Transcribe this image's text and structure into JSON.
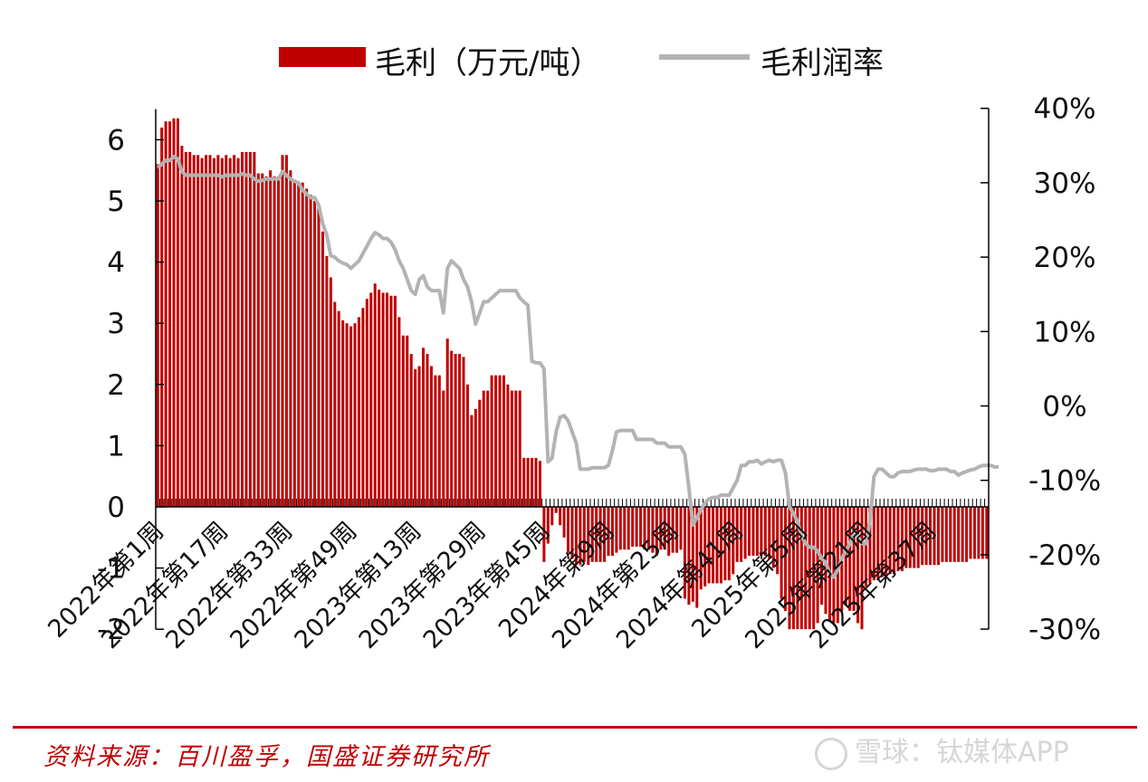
{
  "legend": {
    "bar_label": "毛利（万元/吨）",
    "line_label": "毛利润率"
  },
  "source": "资料来源：百川盈孚，国盛证券研究所",
  "watermark": "雪球：钛媒体APP",
  "colors": {
    "bar": "#c00000",
    "line": "#b3b3b3",
    "accent": "#c00000"
  },
  "chart_data": {
    "type": "bar+line",
    "title": "",
    "x_tick_labels": [
      "2022年第1周",
      "2022年第17周",
      "2022年第33周",
      "2022年第49周",
      "2023年第13周",
      "2023年第29周",
      "2023年第45周",
      "2024年第9周",
      "2024年第25周",
      "2024年第41周",
      "2025年第5周",
      "2025年第21周",
      "2025年第37周"
    ],
    "left_axis": {
      "ticks": [
        "-2",
        "-1",
        "0",
        "1",
        "2",
        "3",
        "4",
        "5",
        "6"
      ],
      "ylim": [
        -2,
        6.5
      ]
    },
    "right_axis": {
      "ticks": [
        "-30%",
        "-20%",
        "-10%",
        "0%",
        "10%",
        "20%",
        "30%",
        "40%"
      ],
      "ylim": [
        -30,
        40
      ]
    },
    "series": [
      {
        "name": "毛利（万元/吨）",
        "axis": "left",
        "type": "bar",
        "values": [
          5.6,
          6.2,
          6.3,
          6.3,
          6.35,
          6.35,
          5.9,
          5.8,
          5.8,
          5.75,
          5.75,
          5.7,
          5.75,
          5.75,
          5.7,
          5.75,
          5.7,
          5.75,
          5.7,
          5.75,
          5.7,
          5.8,
          5.8,
          5.8,
          5.8,
          5.45,
          5.45,
          5.4,
          5.5,
          5.4,
          5.4,
          5.75,
          5.75,
          5.5,
          5.35,
          5.3,
          5.3,
          5.2,
          5.1,
          5.0,
          4.9,
          4.5,
          4.1,
          3.75,
          3.35,
          3.2,
          3.05,
          3.0,
          2.95,
          3.0,
          3.1,
          3.25,
          3.4,
          3.5,
          3.65,
          3.55,
          3.5,
          3.5,
          3.45,
          3.45,
          3.1,
          2.8,
          2.8,
          2.5,
          2.25,
          2.3,
          2.6,
          2.5,
          2.3,
          2.15,
          2.15,
          1.9,
          2.75,
          2.55,
          2.5,
          2.5,
          2.45,
          2.0,
          1.5,
          1.6,
          1.75,
          1.9,
          1.9,
          2.15,
          2.15,
          2.15,
          2.15,
          2.0,
          1.9,
          1.9,
          1.9,
          0.8,
          0.8,
          0.8,
          0.8,
          0.75,
          -0.9,
          -0.6,
          -0.3,
          -0.1,
          -0.3,
          -0.5,
          -0.75,
          -0.85,
          -0.95,
          -0.95,
          -0.9,
          -0.95,
          -0.9,
          -0.9,
          -0.9,
          -0.9,
          -0.8,
          -0.8,
          -0.75,
          -0.7,
          -0.7,
          -0.7,
          -0.65,
          -0.65,
          -0.65,
          -0.7,
          -0.7,
          -0.75,
          -0.8,
          -0.7,
          -0.7,
          -0.8,
          -0.75,
          -0.75,
          -0.7,
          -1.5,
          -1.6,
          -1.55,
          -1.65,
          -1.35,
          -1.3,
          -1.25,
          -1.25,
          -1.25,
          -1.25,
          -1.2,
          -1.2,
          -1.1,
          -0.9,
          -0.9,
          -0.85,
          -0.8,
          -0.8,
          -0.8,
          -0.8,
          -0.8,
          -0.85,
          -1.0,
          -1.1,
          -1.5,
          -1.7,
          -2.0,
          -2.0,
          -2.0,
          -2.0,
          -2.0,
          -2.0,
          -2.0,
          -1.9,
          -1.6,
          -1.75,
          -1.85,
          -1.9,
          -1.9,
          -1.7,
          -1.6,
          -1.7,
          -1.7,
          -1.9,
          -2.0,
          -1.3,
          -1.25,
          -1.2,
          -1.2,
          -1.15,
          -1.15,
          -1.1,
          -1.1,
          -1.05,
          -1.05,
          -1.0,
          -1.0,
          -1.0,
          -1.0,
          -0.95,
          -0.95,
          -0.95,
          -0.95,
          -0.95,
          -0.9,
          -0.9,
          -0.9,
          -0.9,
          -0.9,
          -0.9,
          -0.9,
          -0.85,
          -0.85,
          -0.85,
          -0.85,
          -0.85
        ]
      },
      {
        "name": "毛利润率",
        "axis": "right",
        "type": "line",
        "values": [
          32,
          32.5,
          33,
          33,
          33.5,
          33.2,
          31.5,
          31,
          31,
          31,
          31,
          31,
          31,
          31,
          31,
          31,
          30.8,
          31,
          31,
          31,
          31,
          31.2,
          31,
          31,
          30.5,
          30.2,
          30.3,
          30.5,
          30.5,
          30.5,
          30.5,
          31.5,
          31,
          30.5,
          30.2,
          30,
          29,
          28.5,
          28,
          28,
          27,
          24.5,
          23,
          20.2,
          20,
          19.5,
          19.2,
          19,
          18.5,
          19,
          19.5,
          20.5,
          21.5,
          22.5,
          23.3,
          23,
          22.5,
          22.5,
          22,
          21,
          19.5,
          18.5,
          17,
          15.5,
          15,
          17,
          17.5,
          16,
          15.5,
          15.5,
          15.5,
          12.5,
          18.5,
          19.5,
          19,
          18.5,
          17,
          16,
          14,
          11,
          12.5,
          14,
          14,
          14.5,
          15,
          15.5,
          15.5,
          15.5,
          15.5,
          15.5,
          14.5,
          14,
          13.5,
          6,
          5.8,
          5.8,
          5,
          -7.5,
          -7,
          -3.5,
          -1.5,
          -1.3,
          -2,
          -3.5,
          -5,
          -8.5,
          -8.5,
          -8.5,
          -8.3,
          -8.3,
          -8.3,
          -8.3,
          -8,
          -6,
          -3.5,
          -3.3,
          -3.3,
          -3.3,
          -3.3,
          -4.5,
          -4.5,
          -4.5,
          -4.5,
          -4.5,
          -5,
          -5,
          -5,
          -5.5,
          -5.5,
          -5.5,
          -5.5,
          -6.5,
          -11,
          -16,
          -15,
          -14,
          -13,
          -12.5,
          -12.3,
          -12.3,
          -12,
          -12,
          -12,
          -11,
          -10,
          -8,
          -8,
          -7.5,
          -7.5,
          -7.3,
          -7.8,
          -7.5,
          -7.3,
          -7.5,
          -7.3,
          -7.3,
          -9,
          -13.5,
          -14.5,
          -15.5,
          -17.5,
          -18.5,
          -19,
          -19,
          -19.5,
          -20.5,
          -21,
          -22.5,
          -23,
          -22,
          -20.5,
          -19.5,
          -18.5,
          -17,
          -17.5,
          -18.5,
          -18.5,
          -15.5,
          -9.5,
          -8.5,
          -8.5,
          -9,
          -9.5,
          -9.5,
          -9,
          -8.8,
          -8.8,
          -8.8,
          -8.6,
          -8.5,
          -8.5,
          -8.5,
          -8.7,
          -8.7,
          -8.5,
          -8.5,
          -8.5,
          -8.8,
          -8.8,
          -9.3,
          -9,
          -8.8,
          -8.6,
          -8.5,
          -8.2,
          -8,
          -8,
          -8,
          -8.2,
          -8.2
        ]
      }
    ],
    "grid": false,
    "legend_position": "top"
  }
}
